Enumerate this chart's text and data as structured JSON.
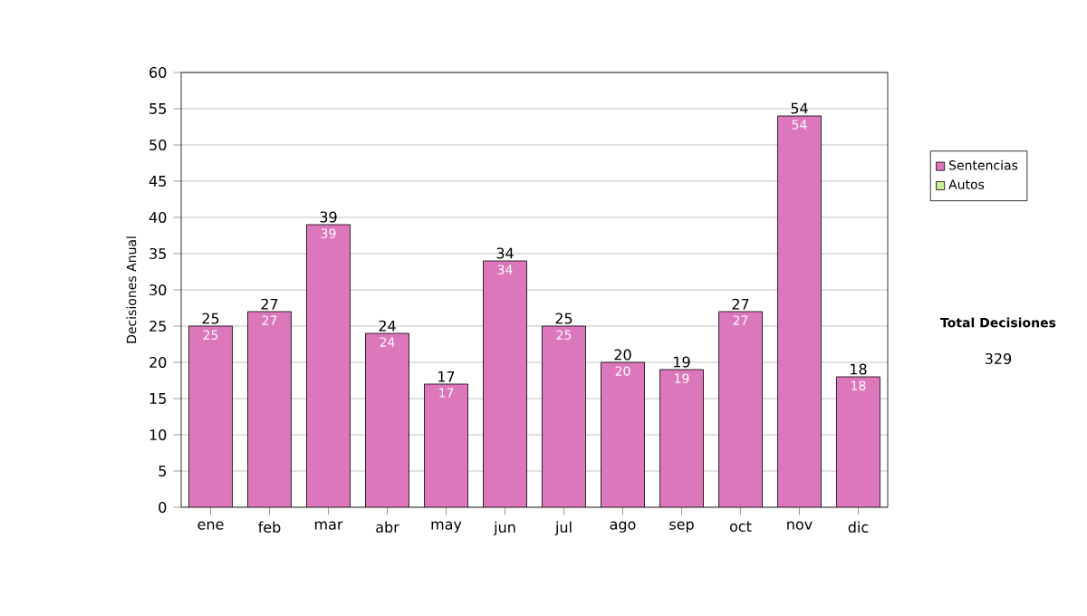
{
  "chart_data": {
    "type": "bar",
    "ylabel": "Decisiones Anual",
    "categories": [
      "ene",
      "feb",
      "mar",
      "abr",
      "may",
      "jun",
      "jul",
      "ago",
      "sep",
      "oct",
      "nov",
      "dic"
    ],
    "series": [
      {
        "name": "Sentencias",
        "color": "#dd77bb",
        "values": [
          25,
          27,
          39,
          24,
          17,
          34,
          25,
          20,
          19,
          27,
          54,
          18
        ]
      },
      {
        "name": "Autos",
        "color": "#ccee99",
        "values": [
          null,
          null,
          null,
          null,
          null,
          null,
          null,
          null,
          null,
          null,
          null,
          null
        ]
      }
    ],
    "totals": [
      "25",
      "27",
      "39",
      "24",
      "17",
      "34",
      "25",
      "20",
      "19",
      "27",
      "54",
      "18"
    ],
    "data_labels": true,
    "ylim": [
      0,
      60
    ],
    "yticks": [
      0,
      5,
      10,
      15,
      20,
      25,
      30,
      35,
      40,
      45,
      50,
      55,
      60
    ],
    "grid": "y",
    "legend": "right",
    "annotations": [
      "Total Decisiones",
      "329"
    ]
  }
}
